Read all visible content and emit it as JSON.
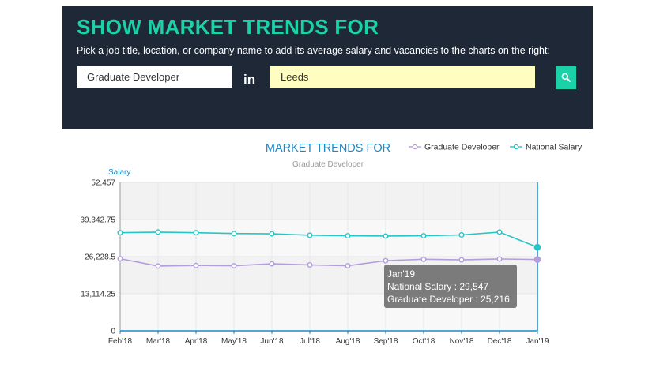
{
  "header": {
    "title": "SHOW MARKET TRENDS FOR",
    "subtitle": "Pick a job title, location, or company name to add its average salary and vacancies to the charts on the right:",
    "job_value": "Graduate Developer",
    "in_label": "in",
    "location_value": "Leeds",
    "search_icon": "search-icon"
  },
  "chart_data": {
    "type": "line",
    "title": "MARKET TRENDS FOR",
    "subtitle": "Graduate Developer",
    "ylabel": "Salary",
    "xlabel": "",
    "categories": [
      "Feb'18",
      "Mar'18",
      "Apr'18",
      "May'18",
      "Jun'18",
      "Jul'18",
      "Aug'18",
      "Sep'18",
      "Oct'18",
      "Nov'18",
      "Dec'18",
      "Jan'19"
    ],
    "yticks": [
      "0",
      "13,114.25",
      "26,228.5",
      "39,342.75",
      "52,457"
    ],
    "ylim": [
      0,
      52457
    ],
    "grid": true,
    "legend_position": "top-right",
    "series": [
      {
        "name": "Graduate Developer",
        "color": "#b39ddb",
        "values": [
          25500,
          22900,
          23100,
          23000,
          23700,
          23300,
          23000,
          24800,
          25300,
          25100,
          25400,
          25216
        ]
      },
      {
        "name": "National Salary",
        "color": "#26c6c6",
        "values": [
          34700,
          34900,
          34700,
          34400,
          34300,
          33800,
          33600,
          33500,
          33600,
          33900,
          34900,
          29547
        ]
      }
    ],
    "tooltip": {
      "title": "Jan'19",
      "line1": "National Salary : 29,547",
      "line2": "Graduate Developer : 25,216"
    }
  }
}
